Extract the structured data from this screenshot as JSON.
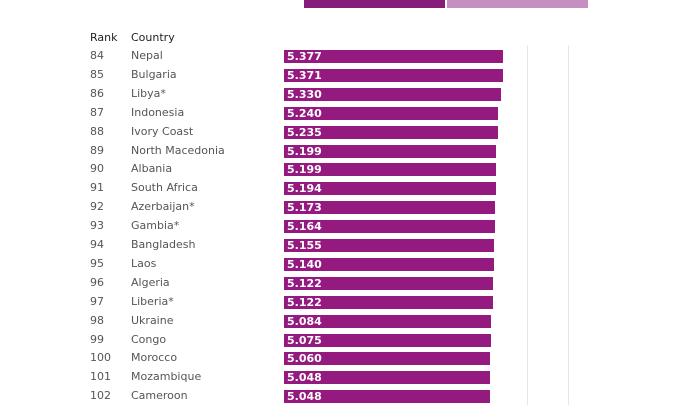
{
  "colors": {
    "bar": "#951a80",
    "toggle_active": "#861d7a",
    "toggle_inactive": "#c58fc0"
  },
  "header": {
    "rank": "Rank",
    "country": "Country"
  },
  "chart_data": {
    "type": "bar",
    "orientation": "horizontal",
    "xlim": [
      0,
      8
    ],
    "columns": [
      "Rank",
      "Country"
    ],
    "rows": [
      {
        "rank": "84",
        "country": "Nepal",
        "value": "5.377"
      },
      {
        "rank": "85",
        "country": "Bulgaria",
        "value": "5.371"
      },
      {
        "rank": "86",
        "country": "Libya*",
        "value": "5.330"
      },
      {
        "rank": "87",
        "country": "Indonesia",
        "value": "5.240"
      },
      {
        "rank": "88",
        "country": "Ivory Coast",
        "value": "5.235"
      },
      {
        "rank": "89",
        "country": "North Macedonia",
        "value": "5.199"
      },
      {
        "rank": "90",
        "country": "Albania",
        "value": "5.199"
      },
      {
        "rank": "91",
        "country": "South Africa",
        "value": "5.194"
      },
      {
        "rank": "92",
        "country": "Azerbaijan*",
        "value": "5.173"
      },
      {
        "rank": "93",
        "country": "Gambia*",
        "value": "5.164"
      },
      {
        "rank": "94",
        "country": "Bangladesh",
        "value": "5.155"
      },
      {
        "rank": "95",
        "country": "Laos",
        "value": "5.140"
      },
      {
        "rank": "96",
        "country": "Algeria",
        "value": "5.122"
      },
      {
        "rank": "97",
        "country": "Liberia*",
        "value": "5.122"
      },
      {
        "rank": "98",
        "country": "Ukraine",
        "value": "5.084"
      },
      {
        "rank": "99",
        "country": "Congo",
        "value": "5.075"
      },
      {
        "rank": "100",
        "country": "Morocco",
        "value": "5.060"
      },
      {
        "rank": "101",
        "country": "Mozambique",
        "value": "5.048"
      },
      {
        "rank": "102",
        "country": "Cameroon",
        "value": "5.048"
      }
    ]
  }
}
